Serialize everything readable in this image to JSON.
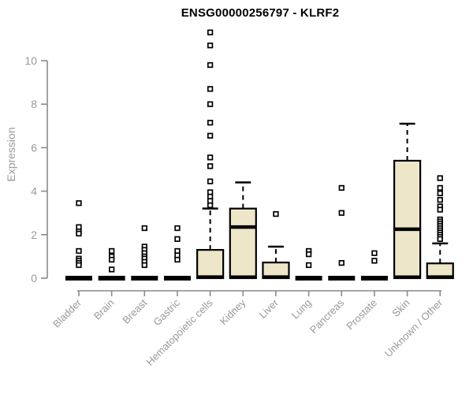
{
  "chart_data": {
    "type": "boxplot",
    "title": "ENSG00000256797 - KLRF2",
    "ylabel": "Expression",
    "xlabel": "",
    "yticks": [
      0,
      2,
      4,
      6,
      8,
      10
    ],
    "ylim": [
      0,
      11.5
    ],
    "grid": false,
    "legend": "none",
    "categories": [
      "Bladder",
      "Brain",
      "Breast",
      "Gastric",
      "Hematopoietic cells",
      "Kidney",
      "Liver",
      "Lung",
      "Pancreas",
      "Prostate",
      "Skin",
      "Unknown / Other"
    ],
    "boxes": [
      {
        "category": "Bladder",
        "q1": 0,
        "median": 0,
        "q3": 0,
        "whisker_low": 0,
        "whisker_high": 0,
        "outliers": [
          3.45,
          2.35,
          2.15,
          2.05,
          1.25,
          0.9,
          0.8,
          0.7,
          0.6
        ]
      },
      {
        "category": "Brain",
        "q1": 0,
        "median": 0,
        "q3": 0,
        "whisker_low": 0,
        "whisker_high": 0,
        "outliers": [
          1.25,
          1.0,
          0.85,
          0.4
        ]
      },
      {
        "category": "Breast",
        "q1": 0,
        "median": 0,
        "q3": 0,
        "whisker_low": 0,
        "whisker_high": 0,
        "outliers": [
          2.3,
          1.45,
          1.3,
          1.15,
          1.0,
          0.9,
          0.75,
          0.6
        ]
      },
      {
        "category": "Gastric",
        "q1": 0,
        "median": 0,
        "q3": 0,
        "whisker_low": 0,
        "whisker_high": 0,
        "outliers": [
          2.3,
          1.8,
          1.25,
          1.05,
          0.85
        ]
      },
      {
        "category": "Hematopoietic cells",
        "q1": 0,
        "median": 0.05,
        "q3": 1.3,
        "whisker_low": 0,
        "whisker_high": 3.2,
        "outliers": [
          11.3,
          10.7,
          9.8,
          8.7,
          8.0,
          7.15,
          6.55,
          5.55,
          5.15,
          4.45,
          3.95,
          3.75,
          3.55,
          3.35
        ]
      },
      {
        "category": "Kidney",
        "q1": 0,
        "median": 2.35,
        "q3": 3.2,
        "whisker_low": 0,
        "whisker_high": 4.4,
        "outliers": []
      },
      {
        "category": "Liver",
        "q1": 0,
        "median": 0.05,
        "q3": 0.72,
        "whisker_low": 0,
        "whisker_high": 1.45,
        "outliers": [
          2.95
        ]
      },
      {
        "category": "Lung",
        "q1": 0,
        "median": 0,
        "q3": 0,
        "whisker_low": 0,
        "whisker_high": 0,
        "outliers": [
          1.25,
          1.1,
          0.6
        ]
      },
      {
        "category": "Pancreas",
        "q1": 0,
        "median": 0,
        "q3": 0,
        "whisker_low": 0,
        "whisker_high": 0,
        "outliers": [
          4.15,
          3.0,
          0.7
        ]
      },
      {
        "category": "Prostate",
        "q1": 0,
        "median": 0,
        "q3": 0,
        "whisker_low": 0,
        "whisker_high": 0,
        "outliers": [
          1.15,
          0.8
        ]
      },
      {
        "category": "Skin",
        "q1": 0,
        "median": 2.25,
        "q3": 5.4,
        "whisker_low": 0,
        "whisker_high": 7.1,
        "outliers": []
      },
      {
        "category": "Unknown / Other",
        "q1": 0,
        "median": 0.05,
        "q3": 0.68,
        "whisker_low": 0,
        "whisker_high": 1.6,
        "outliers": [
          4.6,
          4.15,
          3.9,
          3.6,
          3.3,
          3.15,
          2.7,
          2.6,
          2.5,
          2.4,
          2.3,
          2.2,
          2.1,
          2.0,
          1.9,
          1.8
        ]
      }
    ],
    "colors": {
      "box_fill": "#EDE6C8",
      "box_border": "#000000",
      "median": "#000000",
      "whisker": "#000000",
      "outlier": "#000000",
      "axis_line": "#8a8a8a",
      "tick_text": "#999999",
      "title_text": "#000000",
      "background": "#ffffff"
    }
  }
}
